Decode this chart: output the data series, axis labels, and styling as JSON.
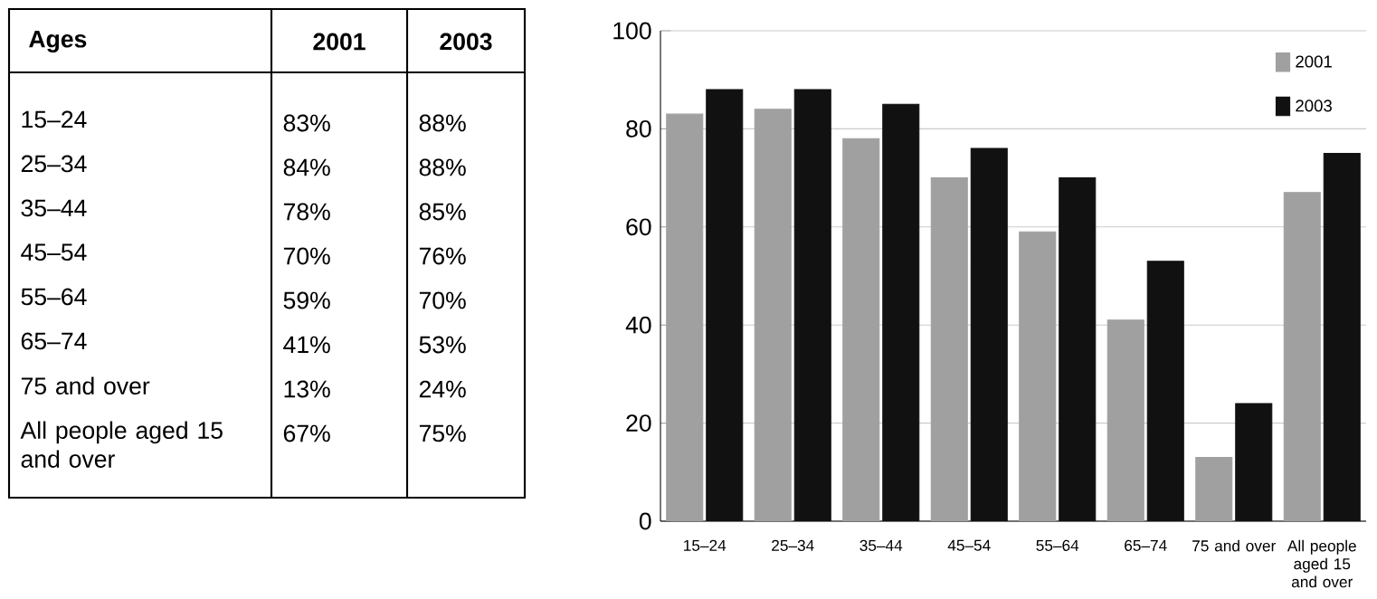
{
  "chart_data": [
    {
      "type": "other",
      "annotations": [
        "Ages"
      ],
      "categories": [
        "15–24",
        "25–34",
        "35–44",
        "45–54",
        "55–64",
        "65–74",
        "75 and over",
        "All people aged 15 and over"
      ],
      "series": [
        {
          "name": "2001",
          "values": [
            83,
            84,
            78,
            70,
            59,
            41,
            13,
            67
          ],
          "value_labels": [
            "83%",
            "84%",
            "78%",
            "70%",
            "59%",
            "41%",
            "13%",
            "67%"
          ]
        },
        {
          "name": "2003",
          "values": [
            88,
            88,
            85,
            76,
            70,
            53,
            24,
            75
          ],
          "value_labels": [
            "88%",
            "88%",
            "85%",
            "76%",
            "70%",
            "53%",
            "24%",
            "75%"
          ]
        }
      ]
    },
    {
      "type": "bar",
      "categories": [
        "15–24",
        "25–34",
        "35–44",
        "45–54",
        "55–64",
        "65–74",
        "75 and over",
        "All people aged 15 and over"
      ],
      "series": [
        {
          "name": "2001",
          "color": "#a0a0a0",
          "values": [
            83,
            84,
            78,
            70,
            59,
            41,
            13,
            67
          ]
        },
        {
          "name": "2003",
          "color": "#111111",
          "values": [
            88,
            88,
            85,
            76,
            70,
            53,
            24,
            75
          ]
        }
      ],
      "ylim": [
        0,
        100
      ],
      "yticks": [
        0,
        20,
        40,
        60,
        80,
        100
      ],
      "grid": "y",
      "legend": "top right"
    }
  ]
}
